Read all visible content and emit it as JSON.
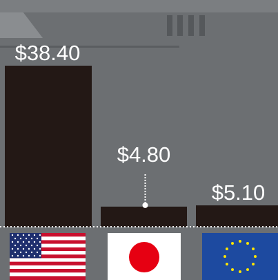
{
  "chart_data": {
    "type": "bar",
    "categories": [
      null,
      null,
      null
    ],
    "values": [
      38.4,
      4.8,
      5.1
    ],
    "value_labels": [
      "$38.40",
      "$4.80",
      "$5.10"
    ],
    "color": "#231815"
  }
}
